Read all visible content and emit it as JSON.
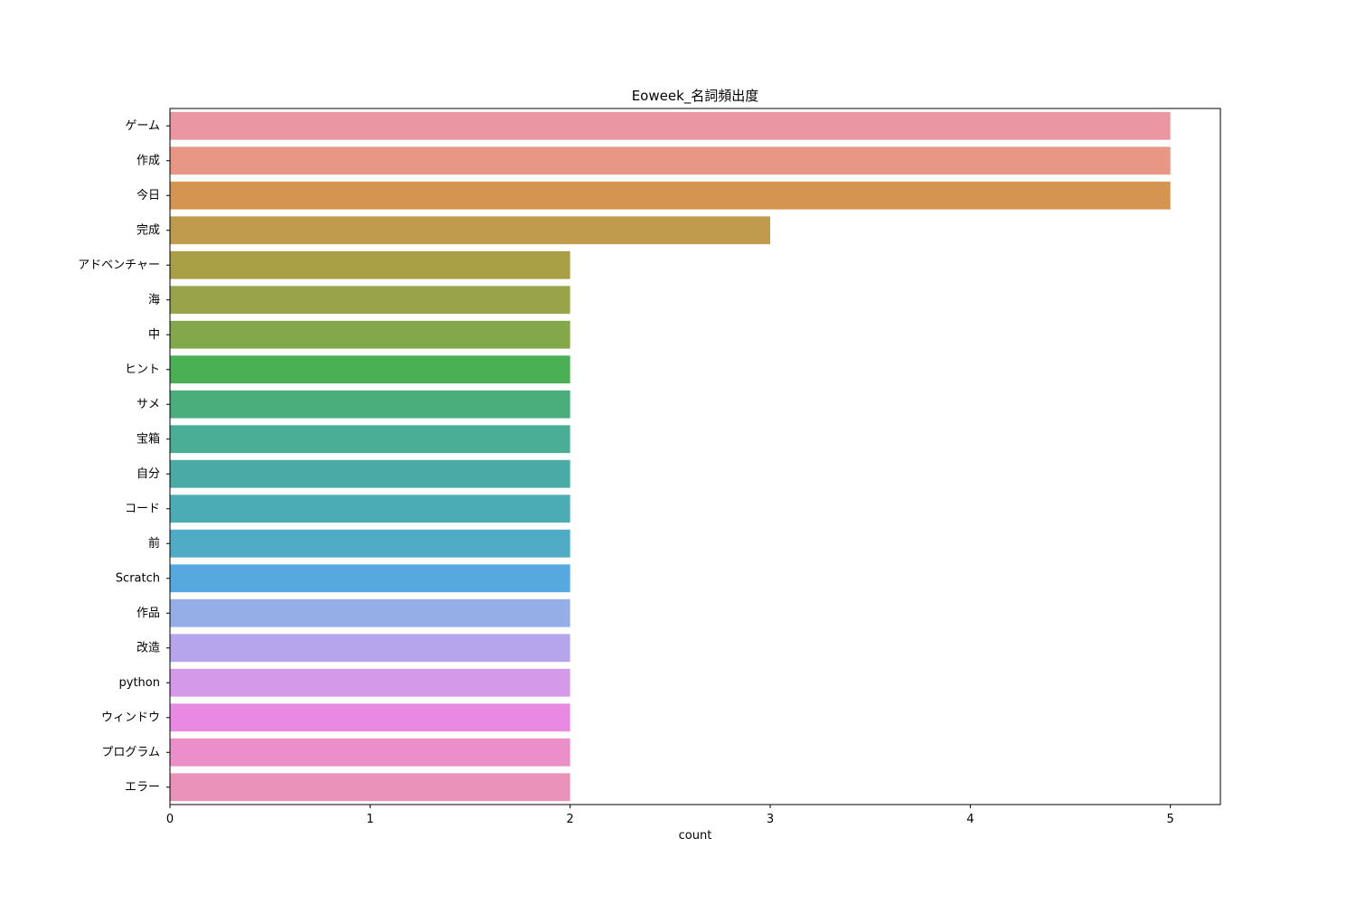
{
  "chart_data": {
    "type": "bar",
    "orientation": "horizontal",
    "title": "Eoweek_名詞頻出度",
    "xlabel": "count",
    "ylabel": "",
    "xlim": [
      0,
      5.25
    ],
    "xticks": [
      0,
      1,
      2,
      3,
      4,
      5
    ],
    "grid": false,
    "categories": [
      "ゲーム",
      "作成",
      "今日",
      "完成",
      "アドベンチャー",
      "海",
      "中",
      "ヒント",
      "サメ",
      "宝箱",
      "自分",
      "コード",
      "前",
      "Scratch",
      "作品",
      "改造",
      "python",
      "ウィンドウ",
      "プログラム",
      "エラー"
    ],
    "values": [
      5,
      5,
      5,
      3,
      2,
      2,
      2,
      2,
      2,
      2,
      2,
      2,
      2,
      2,
      2,
      2,
      2,
      2,
      2,
      2
    ],
    "colors": [
      "#ea96a3",
      "#e89785",
      "#d59550",
      "#c09b4e",
      "#a9a046",
      "#98a34a",
      "#82a84a",
      "#49b054",
      "#4aae7c",
      "#4aae94",
      "#4aaba6",
      "#4cacb5",
      "#4fabc6",
      "#56a9de",
      "#95aee8",
      "#b6a4ec",
      "#d29ae8",
      "#e88ae3",
      "#eb8fc8",
      "#ea93b8"
    ]
  }
}
